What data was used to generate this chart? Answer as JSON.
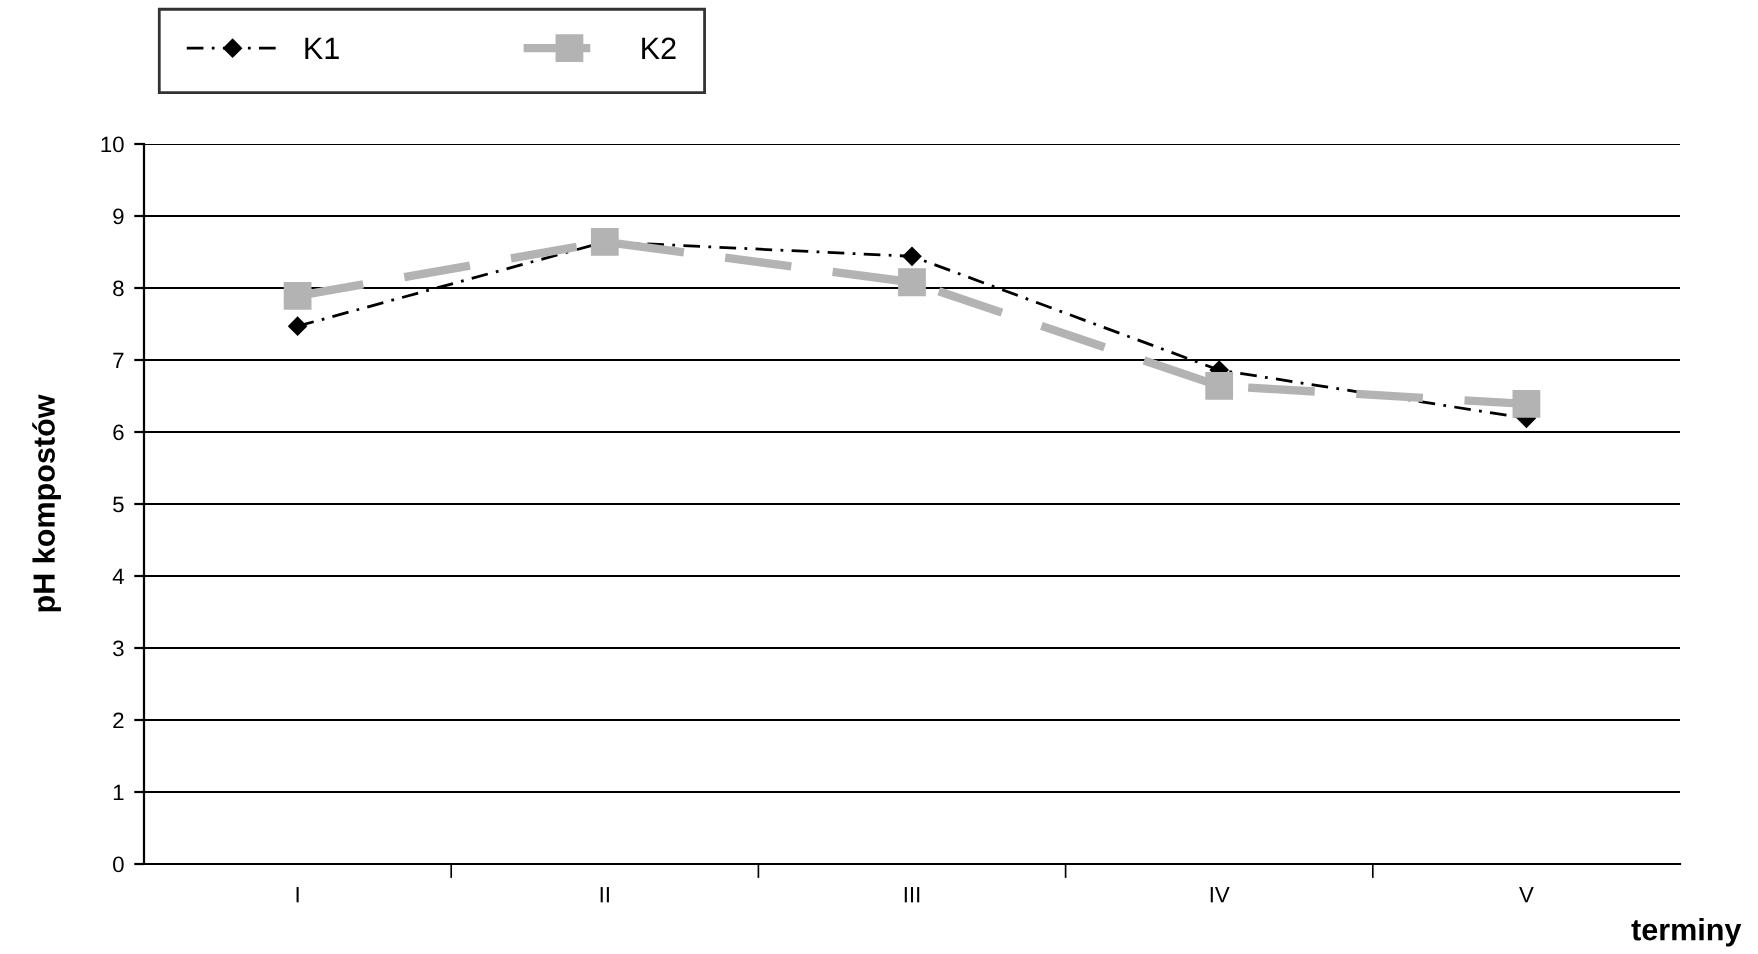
{
  "chart_data": {
    "type": "line",
    "xlabel": "terminy",
    "ylabel": "pH kompostów",
    "categories": [
      "I",
      "II",
      "III",
      "IV",
      "V"
    ],
    "series": [
      {
        "name": "K1",
        "color": "#000000",
        "values": [
          7.47,
          8.64,
          8.44,
          6.86,
          6.19
        ],
        "marker": "diamond",
        "line_style": "dashdot"
      },
      {
        "name": "K2",
        "color": "#b3b3b3",
        "values": [
          7.89,
          8.64,
          8.08,
          6.64,
          6.39
        ],
        "marker": "square",
        "line_style": "dashed"
      }
    ],
    "ylim": [
      0,
      10
    ],
    "yticks": [
      0,
      1,
      2,
      3,
      4,
      5,
      6,
      7,
      8,
      9,
      10
    ],
    "grid": "y",
    "legend": "top left"
  }
}
